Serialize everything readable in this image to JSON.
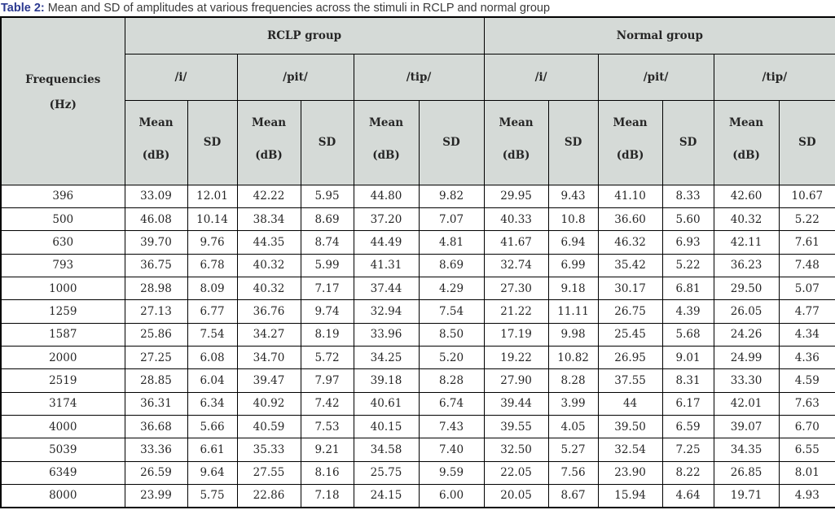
{
  "caption": {
    "label": "Table 2:",
    "text": "Mean and SD of amplitudes at various frequencies across the stimuli in RCLP and normal group"
  },
  "colors": {
    "caption_label": "#2b3990",
    "caption_text": "#3b3b3b",
    "header_bg": "#d5dad7",
    "border": "#000000",
    "cell_text": "#262626"
  },
  "table": {
    "frequency_header": {
      "line1": "Frequencies",
      "line2": "(Hz)"
    },
    "groups": [
      {
        "label": "RCLP group",
        "stimuli": [
          "/i/",
          "/pit/",
          "/tip/"
        ]
      },
      {
        "label": "Normal group",
        "stimuli": [
          "/i/",
          "/pit/",
          "/tip/"
        ]
      }
    ],
    "measure_headers": {
      "mean_line1": "Mean",
      "mean_line2": "(dB)",
      "sd": "SD"
    },
    "rows": [
      {
        "frequency": "396",
        "values": [
          "33.09",
          "12.01",
          "42.22",
          "5.95",
          "44.80",
          "9.82",
          "29.95",
          "9.43",
          "41.10",
          "8.33",
          "42.60",
          "10.67"
        ]
      },
      {
        "frequency": "500",
        "values": [
          "46.08",
          "10.14",
          "38.34",
          "8.69",
          "37.20",
          "7.07",
          "40.33",
          "10.8",
          "36.60",
          "5.60",
          "40.32",
          "5.22"
        ]
      },
      {
        "frequency": "630",
        "values": [
          "39.70",
          "9.76",
          "44.35",
          "8.74",
          "44.49",
          "4.81",
          "41.67",
          "6.94",
          "46.32",
          "6.93",
          "42.11",
          "7.61"
        ]
      },
      {
        "frequency": "793",
        "values": [
          "36.75",
          "6.78",
          "40.32",
          "5.99",
          "41.31",
          "8.69",
          "32.74",
          "6.99",
          "35.42",
          "5.22",
          "36.23",
          "7.48"
        ]
      },
      {
        "frequency": "1000",
        "values": [
          "28.98",
          "8.09",
          "40.32",
          "7.17",
          "37.44",
          "4.29",
          "27.30",
          "9.18",
          "30.17",
          "6.81",
          "29.50",
          "5.07"
        ]
      },
      {
        "frequency": "1259",
        "values": [
          "27.13",
          "6.77",
          "36.76",
          "9.74",
          "32.94",
          "7.54",
          "21.22",
          "11.11",
          "26.75",
          "4.39",
          "26.05",
          "4.77"
        ]
      },
      {
        "frequency": "1587",
        "values": [
          "25.86",
          "7.54",
          "34.27",
          "8.19",
          "33.96",
          "8.50",
          "17.19",
          "9.98",
          "25.45",
          "5.68",
          "24.26",
          "4.34"
        ]
      },
      {
        "frequency": "2000",
        "values": [
          "27.25",
          "6.08",
          "34.70",
          "5.72",
          "34.25",
          "5.20",
          "19.22",
          "10.82",
          "26.95",
          "9.01",
          "24.99",
          "4.36"
        ]
      },
      {
        "frequency": "2519",
        "values": [
          "28.85",
          "6.04",
          "39.47",
          "7.97",
          "39.18",
          "8.28",
          "27.90",
          "8.28",
          "37.55",
          "8.31",
          "33.30",
          "4.59"
        ]
      },
      {
        "frequency": "3174",
        "values": [
          "36.31",
          "6.34",
          "40.92",
          "7.42",
          "40.61",
          "6.74",
          "39.44",
          "3.99",
          "44",
          "6.17",
          "42.01",
          "7.63"
        ]
      },
      {
        "frequency": "4000",
        "values": [
          "36.68",
          "5.66",
          "40.59",
          "7.53",
          "40.15",
          "7.43",
          "39.55",
          "4.05",
          "39.50",
          "6.59",
          "39.07",
          "6.70"
        ]
      },
      {
        "frequency": "5039",
        "values": [
          "33.36",
          "6.61",
          "35.33",
          "9.21",
          "34.58",
          "7.40",
          "32.50",
          "5.27",
          "32.54",
          "7.25",
          "34.35",
          "6.55"
        ]
      },
      {
        "frequency": "6349",
        "values": [
          "26.59",
          "9.64",
          "27.55",
          "8.16",
          "25.75",
          "9.59",
          "22.05",
          "7.56",
          "23.90",
          "8.22",
          "26.85",
          "8.01"
        ]
      },
      {
        "frequency": "8000",
        "values": [
          "23.99",
          "5.75",
          "22.86",
          "7.18",
          "24.15",
          "6.00",
          "20.05",
          "8.67",
          "15.94",
          "4.64",
          "19.71",
          "4.93"
        ]
      }
    ]
  }
}
